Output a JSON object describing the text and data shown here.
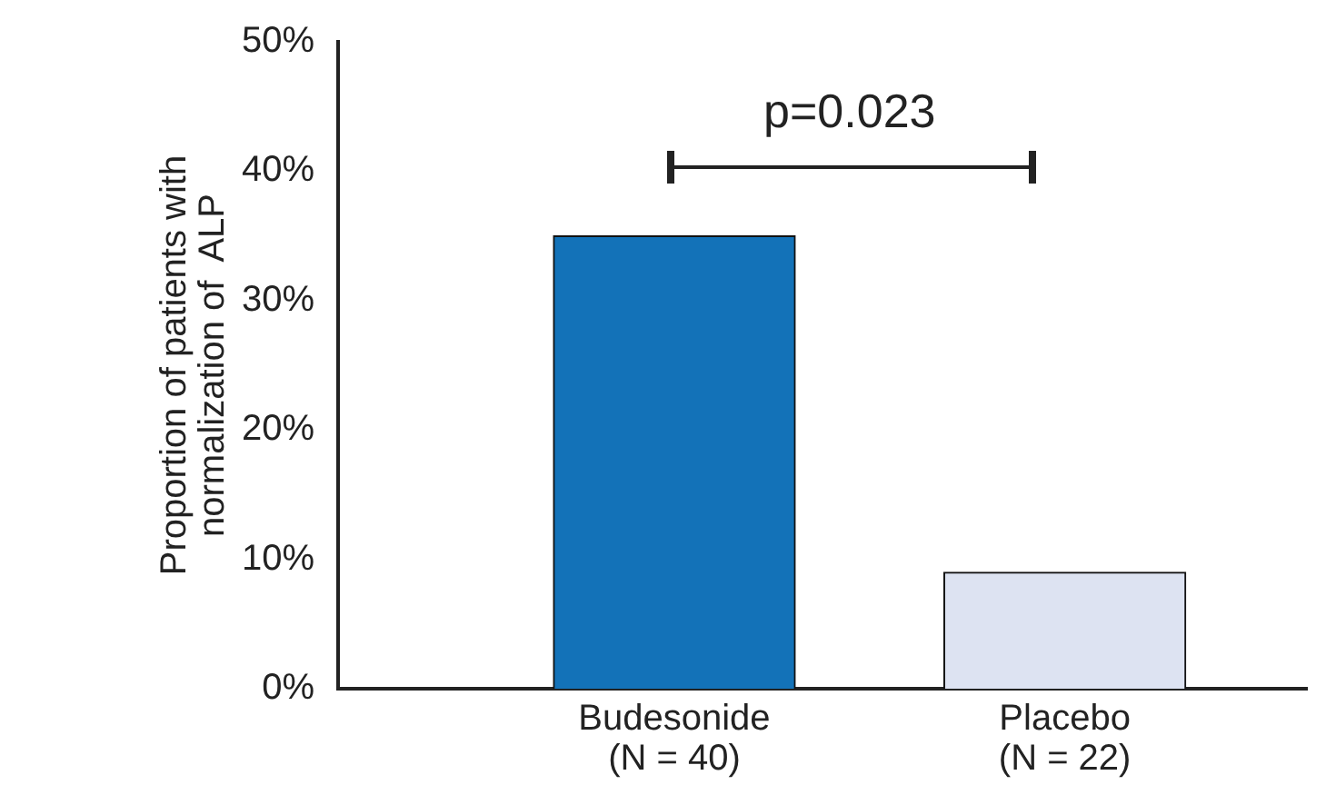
{
  "chart_data": {
    "type": "bar",
    "ylabel": "Proportion of patients with\nnormalization of  ALP",
    "categories": [
      "Budesonide\n(N = 40)",
      "Placebo\n(N = 22)"
    ],
    "values": [
      35,
      9
    ],
    "colors": [
      "#1372b8",
      "#dde3f2"
    ],
    "ylim": [
      0,
      50
    ],
    "yticks": [
      {
        "value": 0,
        "label": "0%"
      },
      {
        "value": 10,
        "label": "10%"
      },
      {
        "value": 20,
        "label": "20%"
      },
      {
        "value": 30,
        "label": "30%"
      },
      {
        "value": 40,
        "label": "40%"
      },
      {
        "value": 50,
        "label": "50%"
      }
    ],
    "grid": false,
    "legend": false,
    "annotations": [
      "p=0.023"
    ]
  }
}
